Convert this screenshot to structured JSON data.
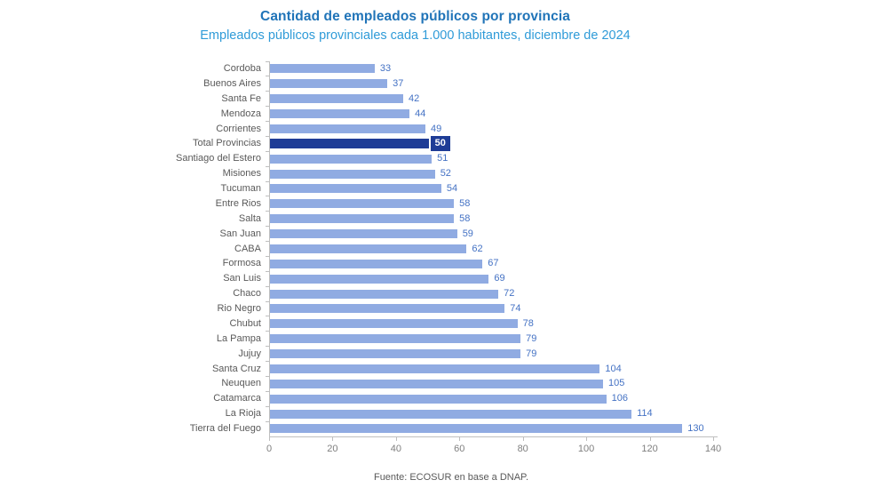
{
  "header": {
    "title": "Cantidad de empleados públicos por provincia",
    "subtitle": "Empleados públicos provinciales cada 1.000 habitantes, diciembre de 2024"
  },
  "footer": {
    "source": "Fuente: ECOSUR en base a DNAP."
  },
  "chart_data": {
    "type": "bar",
    "orientation": "horizontal",
    "title": "Cantidad de empleados públicos por provincia",
    "subtitle": "Empleados públicos provinciales cada 1.000 habitantes, diciembre de 2024",
    "xlabel": "",
    "ylabel": "",
    "xlim": [
      0,
      140
    ],
    "x_ticks": [
      0,
      20,
      40,
      60,
      80,
      100,
      120,
      140
    ],
    "grid": false,
    "legend": false,
    "categories": [
      "Cordoba",
      "Buenos Aires",
      "Santa Fe",
      "Mendoza",
      "Corrientes",
      "Total Provincias",
      "Santiago del Estero",
      "Misiones",
      "Tucuman",
      "Entre Rios",
      "Salta",
      "San Juan",
      "CABA",
      "Formosa",
      "San Luis",
      "Chaco",
      "Rio Negro",
      "Chubut",
      "La Pampa",
      "Jujuy",
      "Santa Cruz",
      "Neuquen",
      "Catamarca",
      "La Rioja",
      "Tierra del Fuego"
    ],
    "values": [
      33,
      37,
      42,
      44,
      49,
      50,
      51,
      52,
      54,
      58,
      58,
      59,
      62,
      67,
      69,
      72,
      74,
      78,
      79,
      79,
      104,
      105,
      106,
      114,
      130
    ],
    "highlight_category": "Total Provincias",
    "source": "Fuente: ECOSUR en base a DNAP.",
    "colors": {
      "bar": "#90ABE2",
      "bar_highlight": "#1E3C96",
      "value_label": "#4472C4",
      "highlight_label_bg": "#1E3C96",
      "highlight_label_text": "#FFFFFF",
      "category_label": "#595959",
      "tick_label": "#7F7F7F",
      "axis_line": "#BFBFBF",
      "title": "#2074B8",
      "subtitle": "#2F9BD8",
      "source_text": "#595959"
    }
  }
}
